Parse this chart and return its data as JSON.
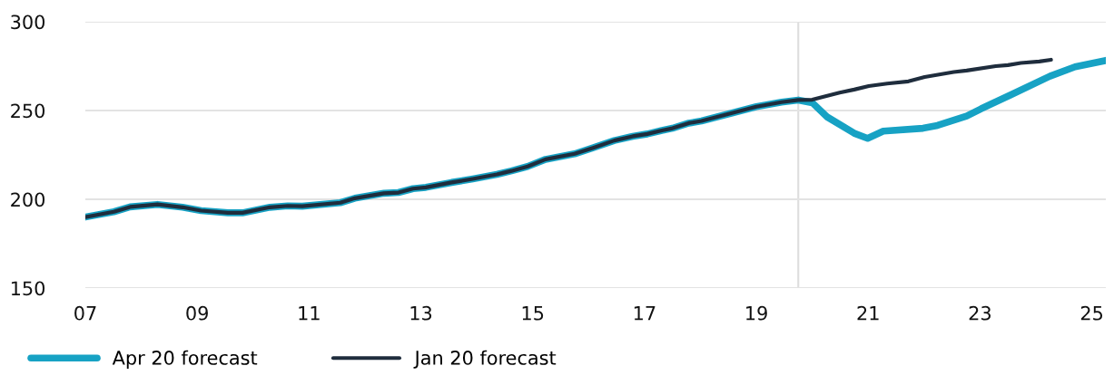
{
  "chart_data": {
    "type": "line",
    "xlim": [
      2007,
      2025.25
    ],
    "xticks": [
      {
        "value": 2007,
        "label": "07"
      },
      {
        "value": 2009,
        "label": "09"
      },
      {
        "value": 2011,
        "label": "11"
      },
      {
        "value": 2013,
        "label": "13"
      },
      {
        "value": 2015,
        "label": "15"
      },
      {
        "value": 2017,
        "label": "17"
      },
      {
        "value": 2019,
        "label": "19"
      },
      {
        "value": 2021,
        "label": "21"
      },
      {
        "value": 2023,
        "label": "23"
      },
      {
        "value": 2025,
        "label": "25"
      }
    ],
    "ylim": [
      150,
      300
    ],
    "yticks": [
      150,
      200,
      250,
      300
    ],
    "grid": "y",
    "legend": "bottom left",
    "marker": "none",
    "line_style": "solid",
    "ref_lines": [
      {
        "axis": "x",
        "value": 2019.75,
        "color": "#dddddd"
      }
    ],
    "series": [
      {
        "name": "Apr 20 forecast",
        "color": "#17a2c4",
        "x": [
          2007.0,
          2007.51,
          2007.8,
          2008.29,
          2008.74,
          2009.07,
          2009.55,
          2009.81,
          2010.3,
          2010.62,
          2010.88,
          2011.56,
          2011.82,
          2012.34,
          2012.6,
          2012.86,
          2013.09,
          2013.55,
          2013.93,
          2014.36,
          2014.62,
          2014.91,
          2015.23,
          2015.75,
          2016.08,
          2016.46,
          2016.79,
          2017.05,
          2017.31,
          2017.5,
          2017.79,
          2018.02,
          2018.41,
          2019.0,
          2019.45,
          2019.75,
          2020.0,
          2020.26,
          2020.75,
          2020.99,
          2021.27,
          2021.98,
          2022.24,
          2022.76,
          2023.02,
          2023.21,
          2023.54,
          2024.25,
          2024.7,
          2025.25
        ],
        "values": [
          190.0,
          193.0,
          195.7,
          197.1,
          195.5,
          193.6,
          192.4,
          192.4,
          195.5,
          196.3,
          196.1,
          198.1,
          200.6,
          203.4,
          203.8,
          206.0,
          206.7,
          209.5,
          211.5,
          214.0,
          216.0,
          218.5,
          222.5,
          225.6,
          229.0,
          233.1,
          235.5,
          236.8,
          238.8,
          240.0,
          242.9,
          244.1,
          247.3,
          252.2,
          254.7,
          255.9,
          254.4,
          246.5,
          237.2,
          234.3,
          238.4,
          240.0,
          241.6,
          246.9,
          251.0,
          253.8,
          258.7,
          269.3,
          274.6,
          278.2
        ]
      },
      {
        "name": "Jan 20 forecast",
        "color": "#1f2d3d",
        "x": [
          2007.0,
          2007.51,
          2007.8,
          2008.29,
          2008.74,
          2009.07,
          2009.55,
          2009.81,
          2010.3,
          2010.62,
          2010.88,
          2011.56,
          2011.82,
          2012.34,
          2012.6,
          2012.86,
          2013.09,
          2013.55,
          2013.93,
          2014.36,
          2014.62,
          2014.91,
          2015.23,
          2015.75,
          2016.08,
          2016.46,
          2016.79,
          2017.05,
          2017.31,
          2017.5,
          2017.79,
          2018.02,
          2018.41,
          2019.0,
          2019.45,
          2019.75,
          2020.0,
          2020.49,
          2020.75,
          2021.01,
          2021.34,
          2021.72,
          2022.01,
          2022.53,
          2022.76,
          2023.28,
          2023.5,
          2023.73,
          2024.06,
          2024.27
        ],
        "values": [
          190.0,
          193.0,
          195.7,
          197.1,
          195.5,
          193.6,
          192.4,
          192.4,
          195.5,
          196.3,
          196.1,
          198.1,
          200.6,
          203.4,
          203.8,
          206.0,
          206.7,
          209.5,
          211.5,
          214.0,
          216.0,
          218.5,
          222.5,
          225.6,
          229.0,
          233.1,
          235.5,
          236.8,
          238.8,
          240.0,
          242.9,
          244.1,
          247.3,
          252.2,
          254.7,
          255.9,
          256.1,
          260.1,
          261.8,
          263.8,
          265.2,
          266.4,
          268.9,
          271.7,
          272.5,
          275.0,
          275.6,
          276.8,
          277.6,
          278.6
        ]
      }
    ]
  }
}
